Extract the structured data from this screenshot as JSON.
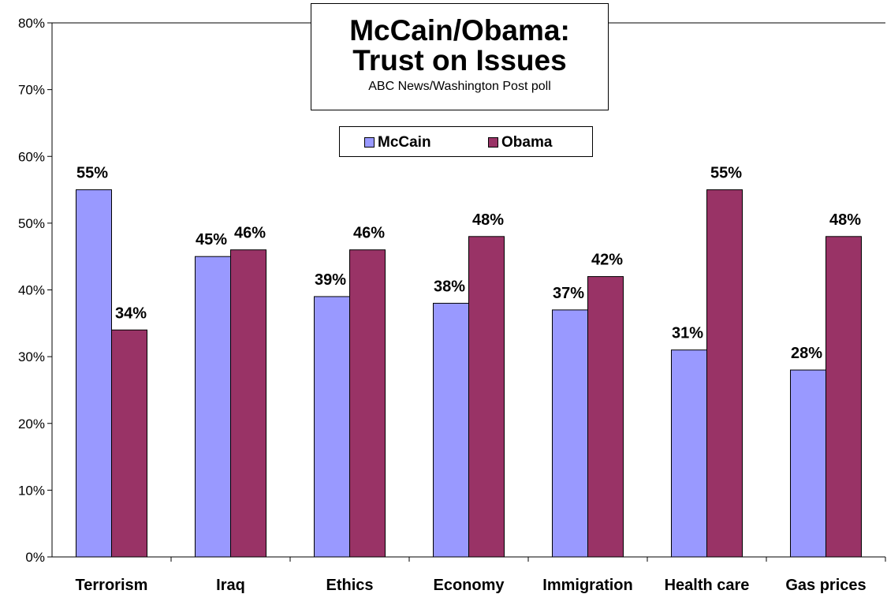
{
  "chart_data": {
    "type": "bar",
    "title": [
      "McCain/Obama:",
      "Trust on Issues"
    ],
    "subtitle": "ABC News/Washington Post poll",
    "categories": [
      "Terrorism",
      "Iraq",
      "Ethics",
      "Economy",
      "Immigration",
      "Health care",
      "Gas prices"
    ],
    "series": [
      {
        "name": "McCain",
        "color": "#9999ff",
        "values": [
          55,
          45,
          39,
          38,
          37,
          31,
          28
        ]
      },
      {
        "name": "Obama",
        "color": "#993366",
        "values": [
          34,
          46,
          46,
          48,
          42,
          55,
          48
        ]
      }
    ],
    "data_labels": [
      [
        "55%",
        "45%",
        "39%",
        "38%",
        "37%",
        "31%",
        "28%"
      ],
      [
        "34%",
        "46%",
        "46%",
        "48%",
        "42%",
        "55%",
        "48%"
      ]
    ],
    "ylim": [
      0,
      80
    ],
    "yticks": [
      0,
      10,
      20,
      30,
      40,
      50,
      60,
      70,
      80
    ],
    "ytick_labels": [
      "0%",
      "10%",
      "20%",
      "30%",
      "40%",
      "50%",
      "60%",
      "70%",
      "80%"
    ],
    "xlabel": "",
    "ylabel": "",
    "grid": false,
    "legend_position": "top-center"
  }
}
